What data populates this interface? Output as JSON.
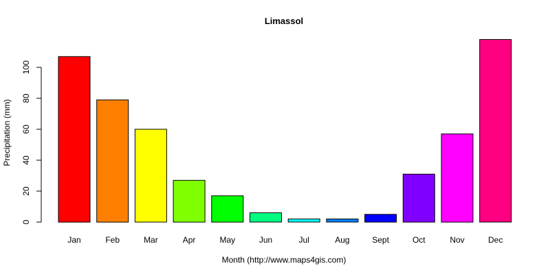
{
  "chart_data": {
    "type": "bar",
    "title": "Limassol",
    "xlabel": "Month (http://www.maps4gis.com)",
    "ylabel": "Precipitation (mm)",
    "categories": [
      "Jan",
      "Feb",
      "Mar",
      "Apr",
      "May",
      "Jun",
      "Jul",
      "Aug",
      "Sept",
      "Oct",
      "Nov",
      "Dec"
    ],
    "values": [
      107,
      79,
      60,
      27,
      17,
      6,
      2,
      2,
      5,
      31,
      57,
      118
    ],
    "colors": [
      "#ff0000",
      "#ff8000",
      "#ffff00",
      "#80ff00",
      "#00ff00",
      "#00ff80",
      "#00ffff",
      "#0080ff",
      "#0000ff",
      "#8000ff",
      "#ff00ff",
      "#ff0080"
    ],
    "yticks": [
      0,
      20,
      40,
      60,
      80,
      100
    ],
    "ylim": [
      0,
      120
    ],
    "grid": false,
    "legend": "none"
  }
}
